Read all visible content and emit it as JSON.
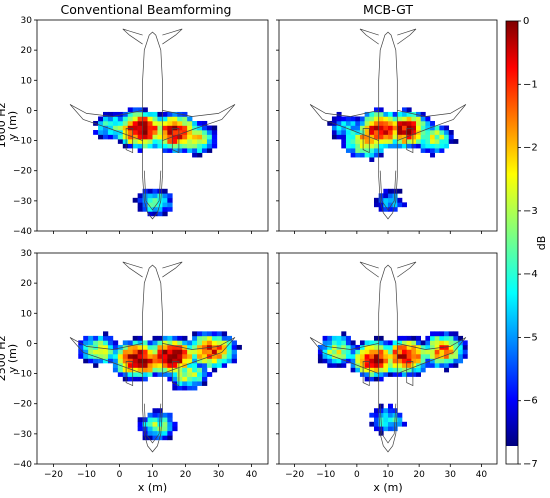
{
  "chart_data": {
    "type": "heatmap",
    "colormap": "jet",
    "colorbar": {
      "label": "dB",
      "range": [
        -7,
        0
      ],
      "ticks": [
        "0",
        "−1",
        "−2",
        "−3",
        "−4",
        "−5",
        "−6",
        "−7"
      ],
      "tick_values": [
        0,
        -1,
        -2,
        -3,
        -4,
        -5,
        -6,
        -7
      ],
      "below_min_color": "#ffffff"
    },
    "shared_axes": {
      "xlabel": "x (m)",
      "ylabel": "y (m)",
      "xlim": [
        -25,
        45
      ],
      "ylim": [
        -40,
        30
      ],
      "xticks": [
        -20,
        -10,
        0,
        10,
        20,
        30,
        40
      ],
      "xtick_labels": [
        "−20",
        "−10",
        "0",
        "10",
        "20",
        "30",
        "40"
      ],
      "yticks": [
        30,
        20,
        10,
        0,
        -10,
        -20,
        -30,
        -40
      ],
      "ytick_labels": [
        "30",
        "20",
        "10",
        "0",
        "−10",
        "−20",
        "−30",
        "−40"
      ]
    },
    "column_titles": [
      "Conventional Beamforming",
      "MCB-GT"
    ],
    "row_labels": [
      "1600 Hz",
      "2500 Hz"
    ],
    "panels": [
      {
        "method": "Conventional Beamforming",
        "frequency": "1600 Hz",
        "sources": [
          {
            "x": 6,
            "y": -7,
            "level": 0
          },
          {
            "x": 16,
            "y": -8,
            "level": -0.5
          },
          {
            "x": 22,
            "y": -10,
            "level": -2.5
          },
          {
            "x": -3,
            "y": -6,
            "level": -4
          },
          {
            "x": 10,
            "y": -31,
            "level": -4
          }
        ]
      },
      {
        "method": "MCB-GT",
        "frequency": "1600 Hz",
        "sources": [
          {
            "x": 7,
            "y": -7,
            "level": -0.5
          },
          {
            "x": 15,
            "y": -7,
            "level": -0.5
          },
          {
            "x": 2,
            "y": -11,
            "level": -2
          },
          {
            "x": 24,
            "y": -10,
            "level": -3
          },
          {
            "x": -4,
            "y": -6,
            "level": -4.5
          },
          {
            "x": 10,
            "y": -31,
            "level": -5
          }
        ]
      },
      {
        "method": "Conventional Beamforming",
        "frequency": "2500 Hz",
        "sources": [
          {
            "x": 5,
            "y": -6,
            "level": 0
          },
          {
            "x": 15,
            "y": -5,
            "level": 0
          },
          {
            "x": 27,
            "y": -3,
            "level": -1
          },
          {
            "x": -7,
            "y": -3,
            "level": -3
          },
          {
            "x": 11,
            "y": -28,
            "level": -3.5
          },
          {
            "x": 20,
            "y": -11,
            "level": -3
          }
        ]
      },
      {
        "method": "MCB-GT",
        "frequency": "2500 Hz",
        "sources": [
          {
            "x": 5,
            "y": -6,
            "level": -0.5
          },
          {
            "x": 15,
            "y": -5,
            "level": -0.5
          },
          {
            "x": 27,
            "y": -3,
            "level": -1.5
          },
          {
            "x": -7,
            "y": -3,
            "level": -3
          },
          {
            "x": 9,
            "y": -26,
            "level": -4
          }
        ]
      }
    ]
  }
}
